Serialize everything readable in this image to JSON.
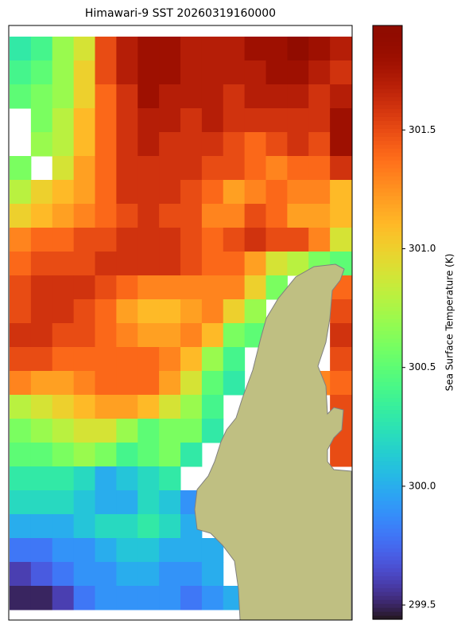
{
  "chart_data": {
    "type": "heatmap",
    "title": "Himawari-9 SST 20260319160000",
    "colorbar_label": "Sea Surface Temperature (K)",
    "colormap": "turbo",
    "clim": [
      299.44,
      301.94
    ],
    "cticks": [
      {
        "value": 299.5,
        "label": "299.5"
      },
      {
        "value": 300.0,
        "label": "300.0"
      },
      {
        "value": 300.5,
        "label": "300.5"
      },
      {
        "value": 301.0,
        "label": "301.0"
      },
      {
        "value": 301.5,
        "label": "301.5"
      }
    ],
    "values": [
      [
        300.3,
        300.4,
        300.7,
        300.9,
        301.5,
        301.7,
        301.8,
        301.8,
        301.7,
        301.7,
        301.7,
        301.8,
        301.8,
        301.9,
        301.8,
        301.7
      ],
      [
        300.4,
        300.5,
        300.7,
        301.0,
        301.5,
        301.7,
        301.8,
        301.8,
        301.7,
        301.7,
        301.7,
        301.7,
        301.8,
        301.8,
        301.7,
        301.6
      ],
      [
        300.5,
        300.6,
        300.7,
        301.0,
        301.4,
        301.6,
        301.8,
        301.7,
        301.7,
        301.7,
        301.6,
        301.7,
        301.7,
        301.7,
        301.6,
        301.7
      ],
      [
        null,
        300.6,
        300.8,
        301.1,
        301.4,
        301.6,
        301.7,
        301.7,
        301.6,
        301.7,
        301.6,
        301.6,
        301.6,
        301.6,
        301.6,
        301.8
      ],
      [
        null,
        300.7,
        300.8,
        301.1,
        301.4,
        301.6,
        301.7,
        301.6,
        301.6,
        301.6,
        301.5,
        301.4,
        301.5,
        301.6,
        301.5,
        301.8
      ],
      [
        300.6,
        null,
        300.9,
        301.2,
        301.4,
        301.6,
        301.6,
        301.6,
        301.6,
        301.5,
        301.5,
        301.4,
        301.3,
        301.4,
        301.4,
        301.6
      ],
      [
        300.8,
        301.0,
        301.1,
        301.2,
        301.4,
        301.6,
        301.6,
        301.6,
        301.5,
        301.4,
        301.2,
        301.3,
        301.4,
        301.3,
        301.3,
        301.1
      ],
      [
        301.0,
        301.1,
        301.2,
        301.3,
        301.4,
        301.5,
        301.6,
        301.5,
        301.5,
        301.3,
        301.3,
        301.5,
        301.4,
        301.2,
        301.2,
        301.1
      ],
      [
        301.3,
        301.4,
        301.4,
        301.5,
        301.5,
        301.6,
        301.6,
        301.6,
        301.5,
        301.4,
        301.5,
        301.6,
        301.5,
        301.5,
        301.3,
        300.9
      ],
      [
        301.4,
        301.5,
        301.5,
        301.5,
        301.6,
        301.6,
        301.6,
        301.6,
        301.5,
        301.4,
        301.4,
        301.2,
        300.9,
        300.8,
        300.6,
        300.5
      ],
      [
        301.5,
        301.6,
        301.6,
        301.6,
        301.5,
        301.4,
        301.3,
        301.3,
        301.3,
        301.3,
        301.3,
        301.0,
        300.6,
        null,
        null,
        301.4
      ],
      [
        301.5,
        301.6,
        301.6,
        301.5,
        301.4,
        301.2,
        301.1,
        301.1,
        301.2,
        301.3,
        301.0,
        300.7,
        null,
        null,
        null,
        301.5
      ],
      [
        301.6,
        301.6,
        301.5,
        301.5,
        301.4,
        301.3,
        301.2,
        301.2,
        301.3,
        301.1,
        300.6,
        300.5,
        null,
        null,
        null,
        301.6
      ],
      [
        301.5,
        301.5,
        301.4,
        301.4,
        301.4,
        301.4,
        301.4,
        301.3,
        301.1,
        300.7,
        300.4,
        null,
        null,
        null,
        null,
        301.5
      ],
      [
        301.3,
        301.2,
        301.2,
        301.3,
        301.4,
        301.4,
        301.4,
        301.2,
        300.9,
        300.5,
        300.3,
        null,
        null,
        null,
        301.3,
        301.4
      ],
      [
        300.8,
        300.9,
        301.0,
        301.1,
        301.2,
        301.2,
        301.1,
        300.9,
        300.7,
        300.4,
        null,
        null,
        null,
        null,
        null,
        301.5
      ],
      [
        300.6,
        300.7,
        300.8,
        300.9,
        300.9,
        300.7,
        300.5,
        300.6,
        300.6,
        300.3,
        null,
        null,
        null,
        null,
        null,
        301.5
      ],
      [
        300.5,
        300.5,
        300.6,
        300.7,
        300.6,
        300.4,
        300.5,
        300.6,
        300.3,
        null,
        null,
        null,
        null,
        null,
        null,
        301.5
      ],
      [
        300.3,
        300.3,
        300.3,
        300.2,
        300.0,
        300.1,
        300.2,
        300.3,
        null,
        null,
        null,
        null,
        null,
        null,
        null,
        null
      ],
      [
        300.2,
        300.2,
        300.2,
        300.1,
        300.0,
        300.0,
        300.2,
        300.1,
        299.9,
        null,
        null,
        null,
        null,
        null,
        null,
        null
      ],
      [
        300.0,
        300.0,
        300.0,
        300.1,
        300.2,
        300.2,
        300.3,
        300.2,
        300.0,
        null,
        null,
        null,
        null,
        null,
        null,
        null
      ],
      [
        299.8,
        299.8,
        299.9,
        299.9,
        300.0,
        300.1,
        300.1,
        300.0,
        300.0,
        300.0,
        null,
        null,
        null,
        null,
        null,
        null
      ],
      [
        299.6,
        299.7,
        299.8,
        299.9,
        299.9,
        300.0,
        300.0,
        299.9,
        299.9,
        300.0,
        null,
        null,
        null,
        null,
        null,
        null
      ],
      [
        299.5,
        299.5,
        299.6,
        299.8,
        299.9,
        299.9,
        299.9,
        299.9,
        299.8,
        299.9,
        300.0,
        null,
        null,
        null,
        null,
        null
      ]
    ]
  }
}
